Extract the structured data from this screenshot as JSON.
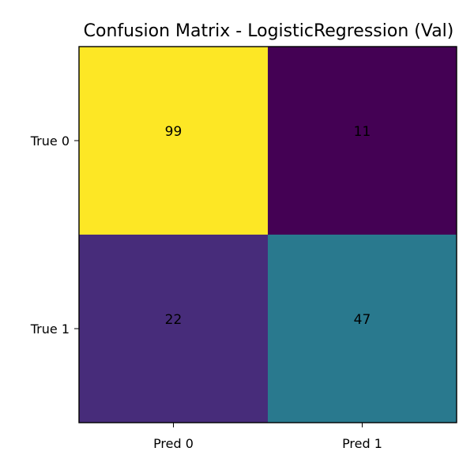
{
  "chart_data": {
    "type": "heatmap",
    "title": "Confusion Matrix - LogisticRegression (Val)",
    "xlabel": "",
    "ylabel": "",
    "x_categories": [
      "Pred 0",
      "Pred 1"
    ],
    "y_categories": [
      "True 0",
      "True 1"
    ],
    "values": [
      [
        99,
        11
      ],
      [
        22,
        47
      ]
    ],
    "value_range": [
      11,
      99
    ],
    "colormap": "viridis",
    "grid": false,
    "legend": "none"
  }
}
